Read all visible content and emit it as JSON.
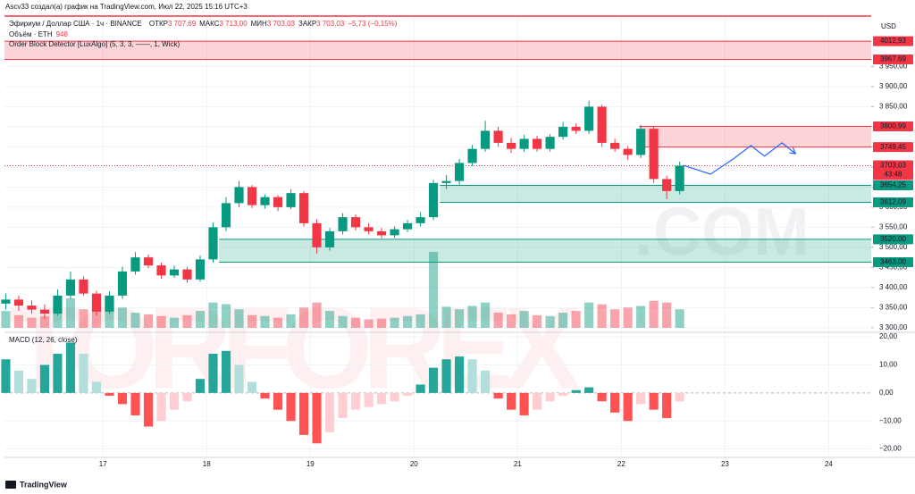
{
  "header": {
    "author_line": "Ascv33 создал(а) график на TradingView.com, Июл 22, 2025 15:16 UTC+3",
    "symbol": "Эфириум / Доллар США · 1ч · BINANCE",
    "ohlc": [
      {
        "label": "ОТКР",
        "value": "3 707,69"
      },
      {
        "label": "МАКС",
        "value": "3 713,00"
      },
      {
        "label": "МИН",
        "value": "3 703,03"
      },
      {
        "label": "ЗАКР",
        "value": "3 703,03"
      }
    ],
    "change": "−5,73 (−0,15%)",
    "volume_label": "Объём · ETH",
    "volume_value": "948",
    "indicator": "Order Block Detector [LuxAlgo] (5, 3, 3, ——, 1, Wick)",
    "currency": "USD",
    "watermark": "TORFOREX",
    "watermark_suffix": ".COM",
    "footer": "TradingView"
  },
  "chart_data": {
    "type": "candlestick",
    "up_color": "#089981",
    "down_color": "#f23645",
    "grid": true,
    "xlim": [
      16.05,
      24.41
    ],
    "xticks": [
      17,
      18,
      19,
      20,
      21,
      22,
      23,
      24
    ],
    "ylim": [
      3293,
      4071
    ],
    "yticks": [
      {
        "value": 3300,
        "label": "3 300,00"
      },
      {
        "value": 3350,
        "label": "3 350,00"
      },
      {
        "value": 3400,
        "label": "3 400,00"
      },
      {
        "value": 3450,
        "label": "3 450,00"
      },
      {
        "value": 3500,
        "label": "3 500,00"
      },
      {
        "value": 3550,
        "label": "3 550,00"
      },
      {
        "value": 3600,
        "label": "3 600,00"
      },
      {
        "value": 3650,
        "label": "3 650,00"
      },
      {
        "value": 3700,
        "label": "3 700,00"
      },
      {
        "value": 3750,
        "label": "3 750,00"
      },
      {
        "value": 3800,
        "label": "3 800,00"
      },
      {
        "value": 3850,
        "label": "3 850,00"
      },
      {
        "value": 3900,
        "label": "3 900,00"
      },
      {
        "value": 3950,
        "label": "3 950,00"
      }
    ],
    "x": [
      16.0625,
      16.1875,
      16.3125,
      16.4375,
      16.5625,
      16.6875,
      16.8125,
      16.9375,
      17.0625,
      17.1875,
      17.3125,
      17.4375,
      17.5625,
      17.6875,
      17.8125,
      17.9375,
      18.0625,
      18.1875,
      18.3125,
      18.4375,
      18.5625,
      18.6875,
      18.8125,
      18.9375,
      19.0625,
      19.1875,
      19.3125,
      19.4375,
      19.5625,
      19.6875,
      19.8125,
      19.9375,
      20.0625,
      20.1875,
      20.3125,
      20.4375,
      20.5625,
      20.6875,
      20.8125,
      20.9375,
      21.0625,
      21.1875,
      21.3125,
      21.4375,
      21.5625,
      21.6875,
      21.8125,
      21.9375,
      22.0625,
      22.1875,
      22.3125,
      22.4375,
      22.5625
    ],
    "open": [
      3360,
      3370,
      3355,
      3345,
      3335,
      3380,
      3420,
      3385,
      3340,
      3380,
      3440,
      3475,
      3455,
      3430,
      3445,
      3420,
      3470,
      3550,
      3610,
      3650,
      3605,
      3625,
      3600,
      3635,
      3560,
      3500,
      3540,
      3575,
      3550,
      3540,
      3530,
      3545,
      3560,
      3575,
      3660,
      3665,
      3710,
      3745,
      3790,
      3760,
      3745,
      3770,
      3745,
      3775,
      3800,
      3790,
      3850,
      3760,
      3745,
      3730,
      3795,
      3670,
      3640
    ],
    "high": [
      3385,
      3380,
      3368,
      3358,
      3395,
      3440,
      3428,
      3392,
      3390,
      3452,
      3488,
      3482,
      3462,
      3455,
      3450,
      3480,
      3562,
      3625,
      3665,
      3655,
      3632,
      3630,
      3645,
      3640,
      3570,
      3548,
      3585,
      3582,
      3560,
      3548,
      3552,
      3568,
      3588,
      3668,
      3680,
      3720,
      3755,
      3815,
      3800,
      3772,
      3780,
      3778,
      3782,
      3812,
      3808,
      3865,
      3855,
      3770,
      3752,
      3805,
      3800,
      3678,
      3713
    ],
    "low": [
      3345,
      3342,
      3335,
      3322,
      3330,
      3372,
      3380,
      3330,
      3335,
      3372,
      3432,
      3448,
      3422,
      3424,
      3412,
      3415,
      3462,
      3540,
      3600,
      3598,
      3596,
      3590,
      3595,
      3552,
      3485,
      3492,
      3532,
      3542,
      3532,
      3522,
      3524,
      3538,
      3552,
      3568,
      3645,
      3655,
      3702,
      3738,
      3750,
      3735,
      3738,
      3738,
      3738,
      3768,
      3782,
      3782,
      3750,
      3738,
      3718,
      3722,
      3660,
      3620,
      3632
    ],
    "close": [
      3370,
      3355,
      3345,
      3335,
      3380,
      3420,
      3385,
      3340,
      3380,
      3440,
      3475,
      3455,
      3430,
      3445,
      3420,
      3470,
      3550,
      3610,
      3650,
      3605,
      3625,
      3600,
      3635,
      3560,
      3500,
      3540,
      3575,
      3550,
      3540,
      3530,
      3545,
      3560,
      3575,
      3660,
      3665,
      3710,
      3745,
      3790,
      3760,
      3745,
      3770,
      3745,
      3775,
      3800,
      3790,
      3850,
      3760,
      3745,
      3730,
      3795,
      3670,
      3640,
      3703
    ],
    "volume": [
      20,
      15,
      12,
      14,
      25,
      35,
      22,
      28,
      30,
      24,
      18,
      16,
      14,
      12,
      15,
      20,
      30,
      28,
      22,
      15,
      14,
      12,
      16,
      24,
      30,
      20,
      14,
      12,
      10,
      11,
      12,
      14,
      16,
      90,
      25,
      22,
      26,
      30,
      18,
      16,
      20,
      15,
      14,
      18,
      20,
      30,
      28,
      22,
      24,
      26,
      32,
      30,
      22
    ],
    "current_price": {
      "value": 3703.03,
      "label": "3703,03",
      "countdown": "43:48"
    },
    "zones": [
      {
        "color": "#f23645",
        "x_start": 16.05,
        "top": {
          "value": 4012.93,
          "label": "4012,93"
        },
        "bottom": {
          "value": 3967.69,
          "label": "3967,69"
        }
      },
      {
        "color": "#f23645",
        "x_start": 22.17,
        "top": {
          "value": 3800.99,
          "label": "3800,99"
        },
        "bottom": {
          "value": 3749.45,
          "label": "3749,45"
        }
      },
      {
        "color": "#089981",
        "x_start": 20.25,
        "top": {
          "value": 3654.25,
          "label": "3654,25"
        },
        "bottom": {
          "value": 3612.09,
          "label": "3612,09"
        }
      },
      {
        "color": "#089981",
        "x_start": 18.12,
        "top": {
          "value": 3520,
          "label": "3520,00"
        },
        "bottom": {
          "value": 3463,
          "label": "3463,00"
        }
      }
    ],
    "projection": {
      "color": "#2962ff",
      "x": [
        22.6,
        22.86,
        23.08,
        23.25,
        23.38,
        23.55,
        23.68
      ],
      "y": [
        3704,
        3682,
        3720,
        3753,
        3727,
        3760,
        3733
      ]
    },
    "macd": {
      "title": "MACD (12, 26, close)",
      "ylim": [
        -23,
        21
      ],
      "yticks": [
        {
          "value": 20,
          "label": "20,00"
        },
        {
          "value": 10,
          "label": "10,00"
        },
        {
          "value": 0,
          "label": "0,00"
        },
        {
          "value": -10,
          "label": "−10,00"
        },
        {
          "value": -20,
          "label": "−20,00"
        }
      ],
      "colors": {
        "pos_up": "#26a69a",
        "pos_down": "#b2dfdb",
        "neg_down": "#ff5252",
        "neg_up": "#ffcdd2"
      },
      "values": [
        12,
        8,
        5,
        10,
        14,
        18,
        14,
        4,
        -1,
        -4,
        -8,
        -12,
        -10,
        -6,
        -3,
        5,
        14,
        15,
        10,
        4,
        -2,
        -6,
        -10,
        -15,
        -18,
        -14,
        -9,
        -6,
        -5,
        -4,
        -3,
        -1,
        3,
        9,
        12,
        13,
        12,
        8,
        -2,
        -6,
        -8,
        -6,
        -3,
        -1,
        1,
        2,
        -3,
        -7,
        -10,
        -4,
        -6,
        -9,
        -3
      ]
    }
  }
}
